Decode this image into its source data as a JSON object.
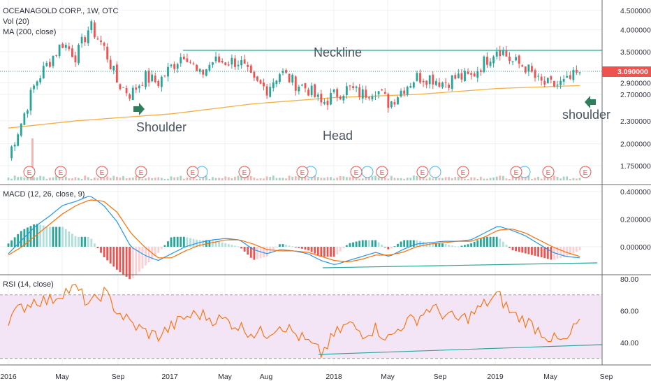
{
  "header": {
    "line1": "OCEANAGOLD CORP., 1W, OTC",
    "line2": "Vol (20)",
    "line3": "MA (200, close)"
  },
  "panes": {
    "macd_label": "MACD (12, 26, close, 9)",
    "rsi_label": "RSI (14, close)"
  },
  "annotations": {
    "neckline": "Neckline",
    "left_shoulder": "Shoulder",
    "head": "Head",
    "right_shoulder": "shoulder"
  },
  "price_badge": "3.090000",
  "earnings_marker": "E",
  "colors": {
    "up": "#26a69a",
    "down": "#ef5350",
    "ma": "#f5b041",
    "macd": "#2196f3",
    "signal": "#ff6d00",
    "rsi": "#ff6d00",
    "rsi_band": "#e1bee7",
    "trendline": "#26a69a",
    "badge": "#ef5350",
    "arrow": "#2e7d5b"
  },
  "chart_data": [
    {
      "type": "candlestick",
      "title": "OCEANAGOLD CORP., 1W, OTC",
      "x_ticks": [
        "2016",
        "May",
        "Sep",
        "2017",
        "May",
        "Aug",
        "2018",
        "May",
        "Sep",
        "2019",
        "May",
        "Sep"
      ],
      "y_ticks": [
        "4.500000",
        "4.000000",
        "3.500000",
        "3.090000",
        "2.900000",
        "2.700000",
        "2.300000",
        "2.000000",
        "1.750000"
      ],
      "scale": "log",
      "ylim": [
        1.65,
        4.6
      ],
      "last_close": 3.09,
      "close_path": [
        [
          "2016-01",
          1.85
        ],
        [
          "2016-02",
          2.3
        ],
        [
          "2016-03",
          2.9
        ],
        [
          "2016-04",
          3.3
        ],
        [
          "2016-05",
          3.7
        ],
        [
          "2016-06",
          3.4
        ],
        [
          "2016-07",
          4.1
        ],
        [
          "2016-08",
          3.6
        ],
        [
          "2016-09",
          2.9
        ],
        [
          "2016-10",
          2.7
        ],
        [
          "2016-11",
          3.0
        ],
        [
          "2016-12",
          2.9
        ],
        [
          "2017-01",
          3.2
        ],
        [
          "2017-02",
          3.5
        ],
        [
          "2017-03",
          3.0
        ],
        [
          "2017-04",
          3.3
        ],
        [
          "2017-05",
          3.3
        ],
        [
          "2017-06",
          3.3
        ],
        [
          "2017-07",
          2.9
        ],
        [
          "2017-08",
          2.8
        ],
        [
          "2017-09",
          3.1
        ],
        [
          "2017-10",
          2.9
        ],
        [
          "2017-11",
          2.8
        ],
        [
          "2017-12",
          2.55
        ],
        [
          "2018-01",
          2.7
        ],
        [
          "2018-02",
          2.8
        ],
        [
          "2018-03",
          2.7
        ],
        [
          "2018-04",
          2.8
        ],
        [
          "2018-05",
          2.55
        ],
        [
          "2018-06",
          2.8
        ],
        [
          "2018-07",
          3.0
        ],
        [
          "2018-08",
          3.0
        ],
        [
          "2018-09",
          2.9
        ],
        [
          "2018-10",
          3.0
        ],
        [
          "2018-11",
          3.0
        ],
        [
          "2018-12",
          3.3
        ],
        [
          "2019-01",
          3.6
        ],
        [
          "2019-02",
          3.3
        ],
        [
          "2019-03",
          3.2
        ],
        [
          "2019-04",
          2.9
        ],
        [
          "2019-05",
          2.85
        ],
        [
          "2019-06",
          2.9
        ],
        [
          "2019-07",
          3.09
        ]
      ],
      "moving_average_200": [
        [
          "2016-01",
          2.2
        ],
        [
          "2016-06",
          2.3
        ],
        [
          "2017-01",
          2.4
        ],
        [
          "2017-07",
          2.55
        ],
        [
          "2018-01",
          2.65
        ],
        [
          "2018-07",
          2.7
        ],
        [
          "2019-01",
          2.8
        ],
        [
          "2019-07",
          2.85
        ]
      ],
      "neckline_level": 3.5,
      "volume_spike_period": "2016-03"
    },
    {
      "type": "line",
      "title": "MACD (12, 26, close, 9)",
      "y_ticks": [
        "0.400000",
        "0.200000",
        "0.000000"
      ],
      "ylim": [
        -0.16,
        0.42
      ],
      "series": [
        {
          "name": "MACD",
          "values": [
            -0.05,
            0.05,
            0.15,
            0.22,
            0.3,
            0.33,
            0.37,
            0.3,
            0.18,
            0.0,
            -0.06,
            -0.1,
            -0.05,
            0.0,
            0.03,
            0.05,
            0.06,
            0.05,
            -0.02,
            -0.05,
            -0.02,
            -0.03,
            -0.05,
            -0.1,
            -0.13,
            -0.1,
            -0.07,
            -0.04,
            -0.07,
            -0.02,
            0.02,
            0.03,
            0.04,
            0.04,
            0.05,
            0.1,
            0.15,
            0.12,
            0.08,
            0.02,
            -0.04,
            -0.07,
            -0.08
          ]
        },
        {
          "name": "Signal",
          "values": [
            -0.06,
            0.0,
            0.08,
            0.16,
            0.24,
            0.3,
            0.34,
            0.33,
            0.25,
            0.1,
            0.0,
            -0.08,
            -0.08,
            -0.03,
            0.01,
            0.03,
            0.05,
            0.05,
            0.02,
            -0.02,
            -0.03,
            -0.03,
            -0.04,
            -0.07,
            -0.1,
            -0.11,
            -0.09,
            -0.06,
            -0.06,
            -0.04,
            0.0,
            0.02,
            0.03,
            0.04,
            0.04,
            0.07,
            0.12,
            0.13,
            0.1,
            0.05,
            0.0,
            -0.04,
            -0.07
          ]
        }
      ]
    },
    {
      "type": "line",
      "title": "RSI (14, close)",
      "y_ticks": [
        "80.00",
        "60.00",
        "40.00"
      ],
      "ylim": [
        28,
        82
      ],
      "band": [
        30,
        70
      ],
      "series": [
        {
          "name": "RSI",
          "values": [
            55,
            62,
            67,
            66,
            72,
            74,
            63,
            72,
            60,
            52,
            47,
            44,
            50,
            56,
            58,
            55,
            54,
            50,
            46,
            46,
            52,
            46,
            40,
            33,
            45,
            52,
            46,
            49,
            42,
            52,
            55,
            62,
            58,
            54,
            57,
            64,
            70,
            58,
            54,
            48,
            42,
            40,
            55
          ]
        }
      ]
    }
  ]
}
